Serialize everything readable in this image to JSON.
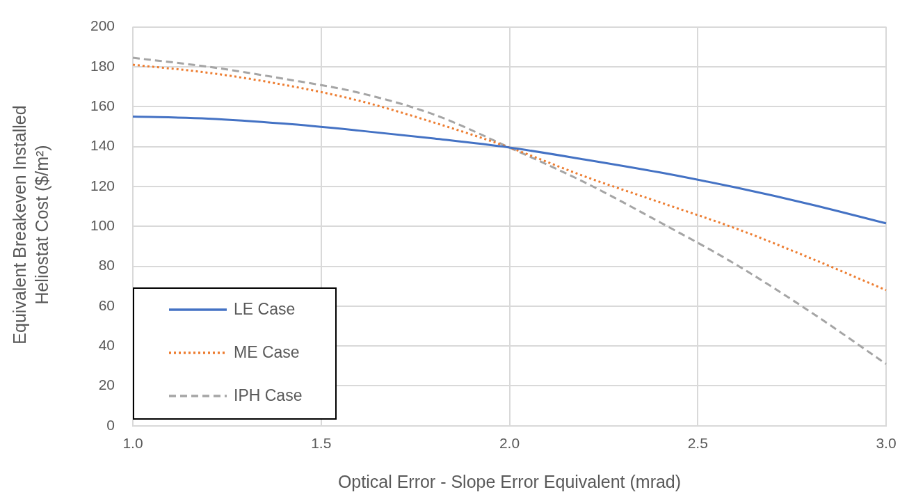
{
  "chart_data": {
    "type": "line",
    "xlabel": "Optical Error - Slope Error Equivalent (mrad)",
    "ylabel": "Equivalent Breakeven Installed Heliostat Cost ($/m²)",
    "x": [
      1.0,
      1.2,
      1.4,
      1.6,
      1.8,
      2.0,
      2.2,
      2.4,
      2.6,
      2.8,
      3.0
    ],
    "series": [
      {
        "name": "LE Case",
        "color": "#4472c4",
        "line_style": "solid",
        "values": [
          155,
          154,
          151.5,
          148,
          144,
          139.5,
          133.5,
          127,
          119.5,
          111,
          101.5
        ]
      },
      {
        "name": "ME Case",
        "color": "#ed7d31",
        "line_style": "dotted",
        "values": [
          181,
          177,
          171,
          163,
          152,
          139.5,
          125,
          112,
          99,
          84,
          68
        ]
      },
      {
        "name": "IPH Case",
        "color": "#a5a5a5",
        "line_style": "dashed",
        "values": [
          184.5,
          180,
          174,
          167,
          156,
          139.5,
          122,
          102,
          81,
          57,
          31
        ]
      }
    ],
    "xlim": [
      1.0,
      3.0
    ],
    "xticks": [
      {
        "value": 1.0,
        "label": "1.0"
      },
      {
        "value": 1.5,
        "label": "1.5"
      },
      {
        "value": 2.0,
        "label": "2.0"
      },
      {
        "value": 2.5,
        "label": "2.5"
      },
      {
        "value": 3.0,
        "label": "3.0"
      }
    ],
    "ylim": [
      0,
      200
    ],
    "yticks": [
      0,
      20,
      40,
      60,
      80,
      100,
      120,
      140,
      160,
      180,
      200
    ],
    "grid": true,
    "legend": "bottom left",
    "marker": "none"
  }
}
